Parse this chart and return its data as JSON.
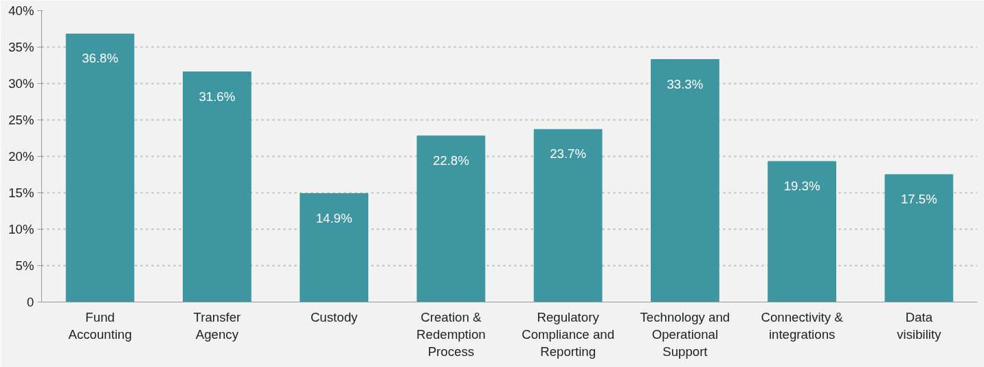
{
  "chart_data": {
    "type": "bar",
    "categories": [
      "Fund Accounting",
      "Transfer Agency",
      "Custody",
      "Creation & Redemption Process",
      "Regulatory Compliance and Reporting",
      "Technology and Operational Support",
      "Connectivity & integrations",
      "Data visibility"
    ],
    "values": [
      36.8,
      31.6,
      14.9,
      22.8,
      23.7,
      33.3,
      19.3,
      17.5
    ],
    "value_labels": [
      "36.8%",
      "31.6%",
      "14.9%",
      "22.8%",
      "23.7%",
      "33.3%",
      "19.3%",
      "17.5%"
    ],
    "color": "#3e97a0",
    "ylim": [
      0,
      40
    ],
    "yticks": [
      0,
      {
        "value": 5,
        "label": "5%"
      },
      {
        "value": 10,
        "label": "10%"
      },
      {
        "value": 15,
        "label": "15%"
      },
      {
        "value": 20,
        "label": "20%"
      },
      {
        "value": 25,
        "label": "25%"
      },
      {
        "value": 30,
        "label": "30%"
      },
      {
        "value": 35,
        "label": "35%"
      },
      {
        "value": 40,
        "label": "40%"
      }
    ],
    "grid": "y"
  }
}
